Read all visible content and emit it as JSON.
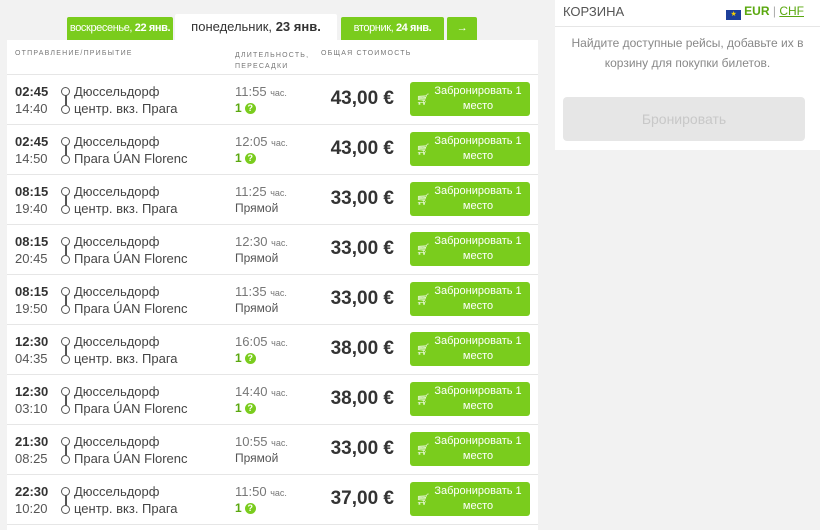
{
  "tabs": [
    {
      "day": "воскресенье,",
      "date": "22 янв."
    },
    {
      "day": "понедельник,",
      "date": "23 янв."
    },
    {
      "day": "вторник,",
      "date": "24 янв."
    }
  ],
  "next_icon": "→",
  "header": {
    "dep": "отправление/прибытие",
    "dur": "длительность, пересадки",
    "price": "общая стоимость"
  },
  "book_label": "Забронировать 1 место",
  "rows": [
    {
      "dep": "02:45",
      "arr": "14:40",
      "from": "Дюссельдорф",
      "to": "центр. вкз. Прага",
      "dur": "11:55",
      "unit": "час.",
      "transfers": "1",
      "price": "43,00 €"
    },
    {
      "dep": "02:45",
      "arr": "14:50",
      "from": "Дюссельдорф",
      "to": "Прага ÚAN Florenc",
      "dur": "12:05",
      "unit": "час.",
      "transfers": "1",
      "price": "43,00 €"
    },
    {
      "dep": "08:15",
      "arr": "19:40",
      "from": "Дюссельдорф",
      "to": "центр. вкз. Прага",
      "dur": "11:25",
      "unit": "час.",
      "transfers": "Прямой",
      "price": "33,00 €"
    },
    {
      "dep": "08:15",
      "arr": "20:45",
      "from": "Дюссельдорф",
      "to": "Прага ÚAN Florenc",
      "dur": "12:30",
      "unit": "час.",
      "transfers": "Прямой",
      "price": "33,00 €"
    },
    {
      "dep": "08:15",
      "arr": "19:50",
      "from": "Дюссельдорф",
      "to": "Прага ÚAN Florenc",
      "dur": "11:35",
      "unit": "час.",
      "transfers": "Прямой",
      "price": "33,00 €"
    },
    {
      "dep": "12:30",
      "arr": "04:35",
      "from": "Дюссельдорф",
      "to": "центр. вкз. Прага",
      "dur": "16:05",
      "unit": "час.",
      "transfers": "1",
      "price": "38,00 €"
    },
    {
      "dep": "12:30",
      "arr": "03:10",
      "from": "Дюссельдорф",
      "to": "Прага ÚAN Florenc",
      "dur": "14:40",
      "unit": "час.",
      "transfers": "1",
      "price": "38,00 €"
    },
    {
      "dep": "21:30",
      "arr": "08:25",
      "from": "Дюссельдорф",
      "to": "Прага ÚAN Florenc",
      "dur": "10:55",
      "unit": "час.",
      "transfers": "Прямой",
      "price": "33,00 €"
    },
    {
      "dep": "22:30",
      "arr": "10:20",
      "from": "Дюссельдорф",
      "to": "центр. вкз. Прага",
      "dur": "11:50",
      "unit": "час.",
      "transfers": "1",
      "price": "37,00 €"
    }
  ],
  "cart": {
    "title": "КОРЗИНА",
    "eur": "EUR",
    "sep": "|",
    "chf": "CHF",
    "message": "Найдите доступные рейсы, добавьте их в корзину для покупки билетов.",
    "button": "Бронировать"
  },
  "colors": {
    "accent": "#7acc1d"
  }
}
